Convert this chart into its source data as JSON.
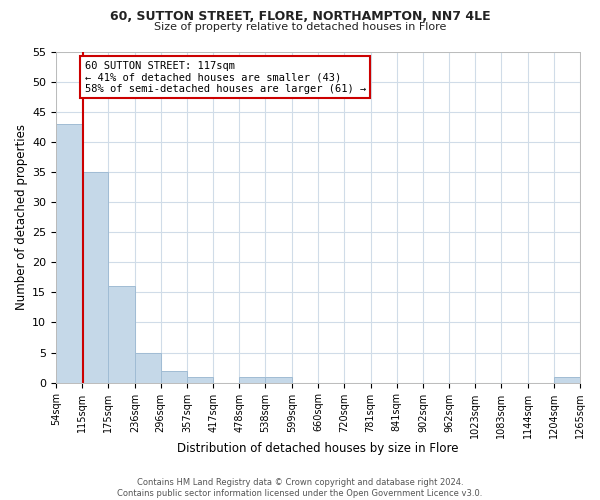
{
  "title": "60, SUTTON STREET, FLORE, NORTHAMPTON, NN7 4LE",
  "subtitle": "Size of property relative to detached houses in Flore",
  "xlabel": "Distribution of detached houses by size in Flore",
  "ylabel": "Number of detached properties",
  "bin_edges": [
    54,
    115,
    175,
    236,
    296,
    357,
    417,
    478,
    538,
    599,
    660,
    720,
    781,
    841,
    902,
    962,
    1023,
    1083,
    1144,
    1204,
    1265
  ],
  "bin_labels": [
    "54sqm",
    "115sqm",
    "175sqm",
    "236sqm",
    "296sqm",
    "357sqm",
    "417sqm",
    "478sqm",
    "538sqm",
    "599sqm",
    "660sqm",
    "720sqm",
    "781sqm",
    "841sqm",
    "902sqm",
    "962sqm",
    "1023sqm",
    "1083sqm",
    "1144sqm",
    "1204sqm",
    "1265sqm"
  ],
  "counts": [
    43,
    35,
    16,
    5,
    2,
    1,
    0,
    1,
    1,
    0,
    0,
    0,
    0,
    0,
    0,
    0,
    0,
    0,
    0,
    1
  ],
  "bar_color": "#c5d8e8",
  "bar_edgecolor": "#a0bcd4",
  "property_size": 117,
  "vline_color": "#cc0000",
  "vline_x": 117,
  "annotation_line1": "60 SUTTON STREET: 117sqm",
  "annotation_line2": "← 41% of detached houses are smaller (43)",
  "annotation_line3": "58% of semi-detached houses are larger (61) →",
  "annotation_box_color": "#ffffff",
  "annotation_box_edgecolor": "#cc0000",
  "ylim": [
    0,
    55
  ],
  "yticks": [
    0,
    5,
    10,
    15,
    20,
    25,
    30,
    35,
    40,
    45,
    50,
    55
  ],
  "footer_line1": "Contains HM Land Registry data © Crown copyright and database right 2024.",
  "footer_line2": "Contains public sector information licensed under the Open Government Licence v3.0.",
  "background_color": "#ffffff",
  "grid_color": "#d0dce8",
  "title_fontsize": 9,
  "subtitle_fontsize": 8,
  "ylabel_text": "Number of detached properties"
}
